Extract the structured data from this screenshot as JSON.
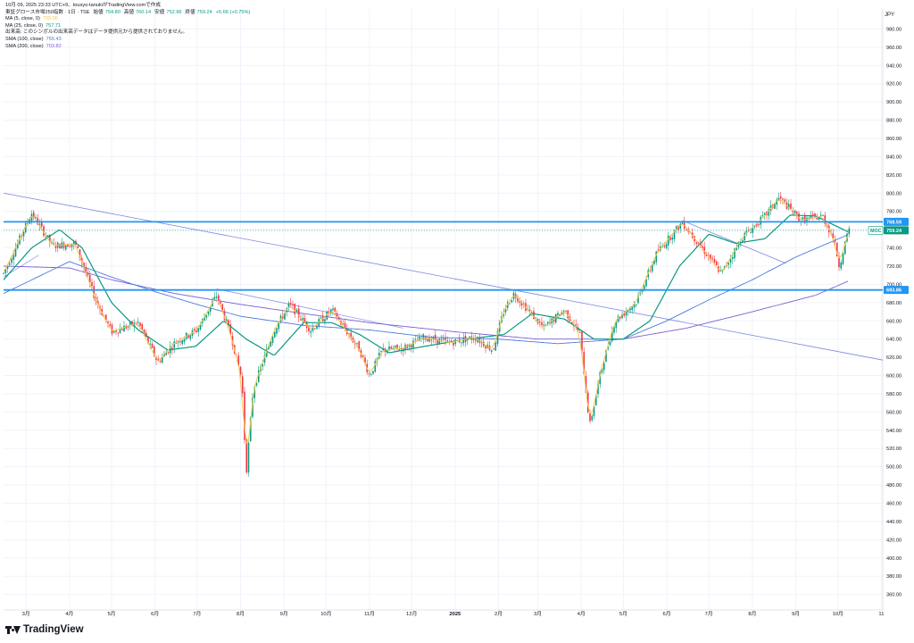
{
  "header": {
    "created_line": "10月 09, 2025 23:33 UTC+9、tousyo-tanukiがTradingView.comで作成",
    "symbol": "東証グロース市場250指数 · 1日 · TSE",
    "open_label": "始値",
    "open_value": "754.80",
    "high_label": "高値",
    "high_value": "760.14",
    "low_label": "安値",
    "low_value": "752.96",
    "close_label": "終値",
    "close_value": "759.24",
    "change": "+5.66 (+0.75%)"
  },
  "indicators": [
    {
      "label": "MA (5, close, 0)",
      "value": "755.06",
      "color": "#f2c94c"
    },
    {
      "label": "MA (25, close, 0)",
      "value": "757.71",
      "color": "#089981"
    },
    {
      "label": "出来高: このシンボルの出来高データはデータ提供元から提供されておりません。",
      "value": "",
      "color": "#131722"
    },
    {
      "label": "SMA (100, close)",
      "value": "755.43",
      "color": "#4a7bd9"
    },
    {
      "label": "SMA (200, close)",
      "value": "703.82",
      "color": "#7b5fd0"
    }
  ],
  "currency": "JPY",
  "brand": "TradingView",
  "colors": {
    "up": "#089981",
    "down": "#f23645",
    "ma5": "#f2c94c",
    "ma25": "#089981",
    "sma100": "#4a7bd9",
    "sma200": "#7b5fd0",
    "hline": "#2196f3",
    "trend": "#5b6bd8",
    "grid": "#f0f3fa"
  },
  "chart_data": {
    "type": "candlestick",
    "y_axis_ticks": [
      360,
      380,
      400,
      420,
      440,
      460,
      480,
      500,
      520,
      540,
      560,
      580,
      600,
      620,
      640,
      660,
      680,
      700,
      720,
      740,
      760,
      780,
      800,
      820,
      840,
      860,
      880,
      900,
      920,
      940,
      960,
      980
    ],
    "ylim": [
      343,
      1002
    ],
    "x_axis_ticks": [
      "3月",
      "4月",
      "5月",
      "6月",
      "7月",
      "8月",
      "9月",
      "10月",
      "11月",
      "12月",
      "2025",
      "2月",
      "3月",
      "4月",
      "5月",
      "6月",
      "7月",
      "8月",
      "9月",
      "10月",
      "11"
    ],
    "horizontal_lines": [
      {
        "value": 768.59,
        "label": "768.59"
      },
      {
        "value": 693.86,
        "label": "693.86"
      }
    ],
    "last_price": {
      "value": 759.24,
      "label": "759.24",
      "tag": "MOC"
    },
    "price_path": [
      {
        "date": "2024-02-14",
        "value": 712
      },
      {
        "date": "2024-03-05",
        "value": 778
      },
      {
        "date": "2024-03-20",
        "value": 742
      },
      {
        "date": "2024-04-05",
        "value": 745
      },
      {
        "date": "2024-04-20",
        "value": 682
      },
      {
        "date": "2024-05-01",
        "value": 648
      },
      {
        "date": "2024-05-20",
        "value": 658
      },
      {
        "date": "2024-06-03",
        "value": 615
      },
      {
        "date": "2024-06-15",
        "value": 636
      },
      {
        "date": "2024-07-01",
        "value": 650
      },
      {
        "date": "2024-07-15",
        "value": 688
      },
      {
        "date": "2024-07-25",
        "value": 645
      },
      {
        "date": "2024-08-02",
        "value": 595
      },
      {
        "date": "2024-08-05",
        "value": 492
      },
      {
        "date": "2024-08-10",
        "value": 585
      },
      {
        "date": "2024-08-25",
        "value": 650
      },
      {
        "date": "2024-09-05",
        "value": 678
      },
      {
        "date": "2024-09-20",
        "value": 650
      },
      {
        "date": "2024-10-05",
        "value": 672
      },
      {
        "date": "2024-10-25",
        "value": 628
      },
      {
        "date": "2024-11-01",
        "value": 600
      },
      {
        "date": "2024-11-10",
        "value": 628
      },
      {
        "date": "2024-11-25",
        "value": 630
      },
      {
        "date": "2024-12-10",
        "value": 642
      },
      {
        "date": "2024-12-28",
        "value": 636
      },
      {
        "date": "2025-01-15",
        "value": 642
      },
      {
        "date": "2025-01-28",
        "value": 628
      },
      {
        "date": "2025-02-05",
        "value": 672
      },
      {
        "date": "2025-02-12",
        "value": 690
      },
      {
        "date": "2025-03-05",
        "value": 652
      },
      {
        "date": "2025-03-20",
        "value": 672
      },
      {
        "date": "2025-03-31",
        "value": 646
      },
      {
        "date": "2025-04-07",
        "value": 545
      },
      {
        "date": "2025-04-15",
        "value": 605
      },
      {
        "date": "2025-04-25",
        "value": 660
      },
      {
        "date": "2025-05-10",
        "value": 680
      },
      {
        "date": "2025-05-25",
        "value": 735
      },
      {
        "date": "2025-06-12",
        "value": 768
      },
      {
        "date": "2025-06-25",
        "value": 742
      },
      {
        "date": "2025-07-10",
        "value": 712
      },
      {
        "date": "2025-07-25",
        "value": 752
      },
      {
        "date": "2025-08-10",
        "value": 775
      },
      {
        "date": "2025-08-20",
        "value": 795
      },
      {
        "date": "2025-09-05",
        "value": 770
      },
      {
        "date": "2025-09-20",
        "value": 775
      },
      {
        "date": "2025-09-28",
        "value": 750
      },
      {
        "date": "2025-10-02",
        "value": 720
      },
      {
        "date": "2025-10-06",
        "value": 745
      },
      {
        "date": "2025-10-09",
        "value": 759
      }
    ],
    "ma25_path": [
      {
        "date": "2024-02-14",
        "value": 705
      },
      {
        "date": "2024-03-05",
        "value": 740
      },
      {
        "date": "2024-03-25",
        "value": 760
      },
      {
        "date": "2024-04-10",
        "value": 740
      },
      {
        "date": "2024-05-01",
        "value": 680
      },
      {
        "date": "2024-05-20",
        "value": 650
      },
      {
        "date": "2024-06-10",
        "value": 628
      },
      {
        "date": "2024-06-30",
        "value": 632
      },
      {
        "date": "2024-07-20",
        "value": 660
      },
      {
        "date": "2024-08-05",
        "value": 640
      },
      {
        "date": "2024-08-25",
        "value": 622
      },
      {
        "date": "2024-09-15",
        "value": 658
      },
      {
        "date": "2024-10-05",
        "value": 658
      },
      {
        "date": "2024-10-25",
        "value": 645
      },
      {
        "date": "2024-11-15",
        "value": 625
      },
      {
        "date": "2024-12-10",
        "value": 632
      },
      {
        "date": "2025-01-10",
        "value": 640
      },
      {
        "date": "2025-02-05",
        "value": 645
      },
      {
        "date": "2025-02-25",
        "value": 668
      },
      {
        "date": "2025-03-20",
        "value": 662
      },
      {
        "date": "2025-04-10",
        "value": 640
      },
      {
        "date": "2025-05-01",
        "value": 640
      },
      {
        "date": "2025-05-20",
        "value": 660
      },
      {
        "date": "2025-06-10",
        "value": 720
      },
      {
        "date": "2025-07-01",
        "value": 755
      },
      {
        "date": "2025-07-20",
        "value": 745
      },
      {
        "date": "2025-08-10",
        "value": 750
      },
      {
        "date": "2025-08-28",
        "value": 776
      },
      {
        "date": "2025-09-15",
        "value": 775
      },
      {
        "date": "2025-10-09",
        "value": 757
      }
    ],
    "sma100_path": [
      {
        "date": "2024-02-14",
        "value": 690
      },
      {
        "date": "2024-04-01",
        "value": 725
      },
      {
        "date": "2024-05-01",
        "value": 708
      },
      {
        "date": "2024-06-01",
        "value": 692
      },
      {
        "date": "2024-07-01",
        "value": 678
      },
      {
        "date": "2024-08-01",
        "value": 665
      },
      {
        "date": "2024-09-15",
        "value": 655
      },
      {
        "date": "2024-11-01",
        "value": 650
      },
      {
        "date": "2024-12-15",
        "value": 642
      },
      {
        "date": "2025-02-01",
        "value": 640
      },
      {
        "date": "2025-03-15",
        "value": 635
      },
      {
        "date": "2025-05-01",
        "value": 640
      },
      {
        "date": "2025-06-01",
        "value": 660
      },
      {
        "date": "2025-07-01",
        "value": 683
      },
      {
        "date": "2025-08-01",
        "value": 705
      },
      {
        "date": "2025-09-01",
        "value": 730
      },
      {
        "date": "2025-10-09",
        "value": 755
      }
    ],
    "sma200_path": [
      {
        "date": "2024-02-14",
        "value": 720
      },
      {
        "date": "2024-04-01",
        "value": 718
      },
      {
        "date": "2024-05-01",
        "value": 705
      },
      {
        "date": "2024-06-15",
        "value": 690
      },
      {
        "date": "2024-08-01",
        "value": 678
      },
      {
        "date": "2024-09-15",
        "value": 668
      },
      {
        "date": "2024-11-01",
        "value": 658
      },
      {
        "date": "2025-01-01",
        "value": 648
      },
      {
        "date": "2025-03-01",
        "value": 640
      },
      {
        "date": "2025-05-01",
        "value": 640
      },
      {
        "date": "2025-06-15",
        "value": 652
      },
      {
        "date": "2025-08-01",
        "value": 670
      },
      {
        "date": "2025-09-15",
        "value": 688
      },
      {
        "date": "2025-10-09",
        "value": 704
      }
    ]
  }
}
